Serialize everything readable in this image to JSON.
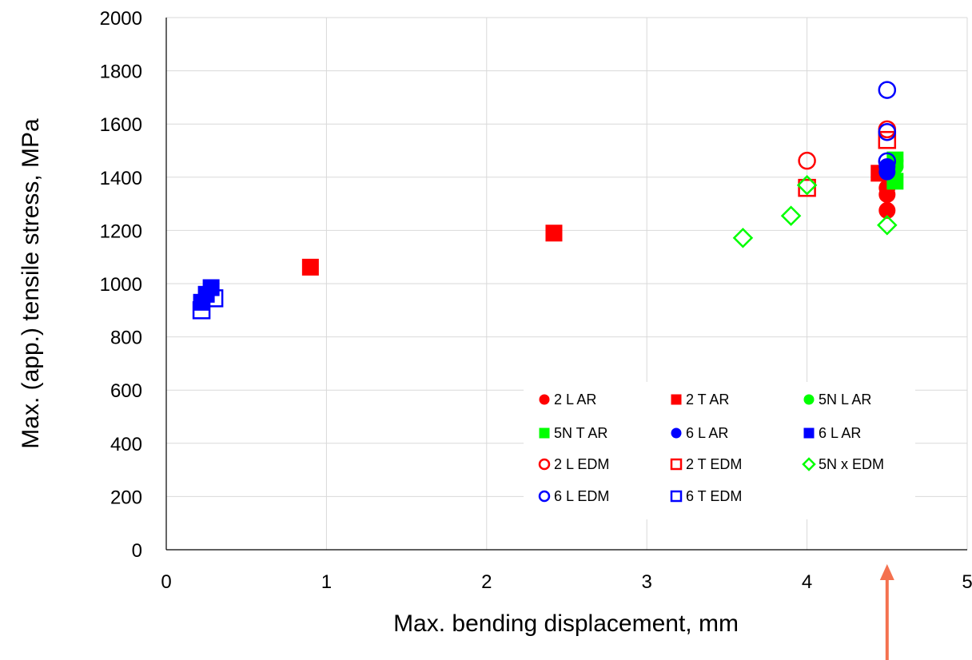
{
  "chart_data": {
    "type": "scatter",
    "title": "",
    "xlabel": "Max. bending displacement, mm",
    "ylabel": "Max. (app.) tensile stress, MPa",
    "xlim": [
      0,
      5
    ],
    "ylim": [
      0,
      2000
    ],
    "xticks": [
      0,
      1,
      2,
      3,
      4,
      5
    ],
    "yticks": [
      0,
      200,
      400,
      600,
      800,
      1000,
      1200,
      1400,
      1600,
      1800,
      2000
    ],
    "grid": true,
    "legend_position": "lower-right",
    "annotation": "arrow-up-at-x-4.5",
    "series": [
      {
        "name": "2 L AR",
        "marker": "circle",
        "fill": true,
        "color": "#ff0000",
        "points": [
          [
            4.5,
            1275
          ],
          [
            4.5,
            1335
          ],
          [
            4.5,
            1360
          ]
        ]
      },
      {
        "name": "2 T AR",
        "marker": "square",
        "fill": true,
        "color": "#ff0000",
        "points": [
          [
            0.9,
            1062
          ],
          [
            2.42,
            1190
          ],
          [
            4.45,
            1415
          ]
        ]
      },
      {
        "name": "5N L AR",
        "marker": "circle",
        "fill": true,
        "color": "#00ff00",
        "points": [
          [
            4.55,
            1462
          ],
          [
            4.55,
            1440
          ]
        ]
      },
      {
        "name": "5N T AR",
        "marker": "square",
        "fill": true,
        "color": "#00ff00",
        "points": [
          [
            4.55,
            1385
          ],
          [
            4.55,
            1465
          ]
        ]
      },
      {
        "name": "6 L AR",
        "marker": "circle",
        "fill": true,
        "color": "#0000ff",
        "points": [
          [
            4.5,
            1420
          ],
          [
            4.5,
            1440
          ]
        ]
      },
      {
        "name": "6 L AR",
        "marker": "square",
        "fill": true,
        "color": "#0000ff",
        "points": [
          [
            0.22,
            930
          ],
          [
            0.25,
            960
          ],
          [
            0.28,
            985
          ]
        ]
      },
      {
        "name": "2 L EDM",
        "marker": "circle",
        "fill": false,
        "color": "#ff0000",
        "points": [
          [
            4.0,
            1462
          ],
          [
            4.5,
            1580
          ]
        ]
      },
      {
        "name": "2 T EDM",
        "marker": "square",
        "fill": false,
        "color": "#ff0000",
        "points": [
          [
            4.0,
            1360
          ],
          [
            4.5,
            1540
          ]
        ]
      },
      {
        "name": "5N x EDM",
        "marker": "diamond",
        "fill": false,
        "color": "#00ff00",
        "points": [
          [
            3.6,
            1172
          ],
          [
            3.9,
            1255
          ],
          [
            4.0,
            1370
          ],
          [
            4.5,
            1220
          ]
        ]
      },
      {
        "name": "6 L EDM",
        "marker": "circle",
        "fill": false,
        "color": "#0000ff",
        "points": [
          [
            4.5,
            1728
          ],
          [
            4.5,
            1570
          ],
          [
            4.5,
            1460
          ]
        ]
      },
      {
        "name": "6 T EDM",
        "marker": "square",
        "fill": false,
        "color": "#0000ff",
        "points": [
          [
            0.22,
            900
          ],
          [
            0.3,
            945
          ]
        ]
      }
    ],
    "arrow_color": "#f4714f"
  }
}
